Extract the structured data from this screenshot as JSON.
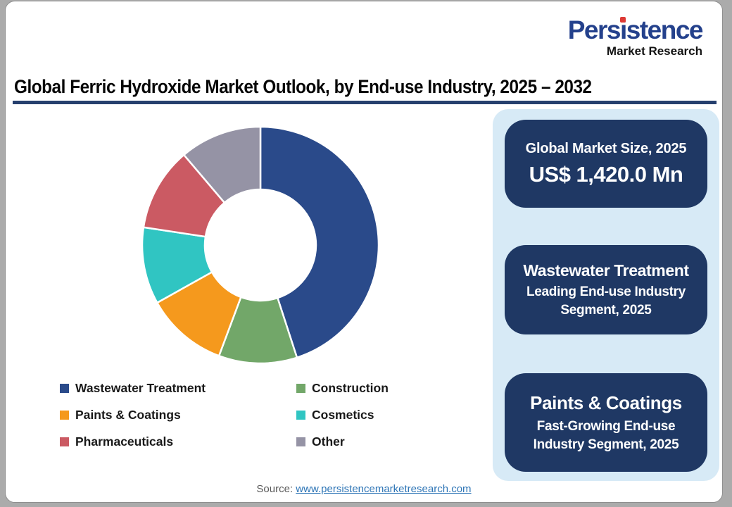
{
  "page": {
    "outer_background": "#ABABAB",
    "card_background": "#FFFFFF"
  },
  "logo": {
    "part1": "Pers",
    "i_char": "i",
    "part2": "stence",
    "subtitle": "Market Research",
    "blue": "#24418C",
    "dot_red": "#DD3A35"
  },
  "header": {
    "title": "Global Ferric Hydroxide Market Outlook, by End-use Industry, 2025 – 2032",
    "underline_color": "#26406E"
  },
  "chart_data": {
    "type": "pie",
    "subtype": "donut",
    "title": "Global Ferric Hydroxide Market Outlook, by End-use Industry, 2025 – 2032",
    "start_angle_deg": 0,
    "direction": "clockwise",
    "inner_radius_ratio": 0.47,
    "gap_stroke_color": "#FFFFFF",
    "segments": [
      {
        "label": "Wastewater Treatment",
        "value_pct_est": 45.0,
        "color": "#2A4A8A"
      },
      {
        "label": "Construction",
        "value_pct_est": 10.7,
        "color": "#72A769"
      },
      {
        "label": "Paints & Coatings",
        "value_pct_est": 11.2,
        "color": "#F5991D"
      },
      {
        "label": "Cosmetics",
        "value_pct_est": 10.5,
        "color": "#30C5C2"
      },
      {
        "label": "Pharmaceuticals",
        "value_pct_est": 11.4,
        "color": "#CB5A63"
      },
      {
        "label": "Other",
        "value_pct_est": 11.2,
        "color": "#9593A5"
      }
    ]
  },
  "legend": {
    "items": [
      {
        "label": "Wastewater Treatment",
        "color": "#2A4A8A"
      },
      {
        "label": "Construction",
        "color": "#72A769"
      },
      {
        "label": "Paints & Coatings",
        "color": "#F5991D"
      },
      {
        "label": "Cosmetics",
        "color": "#30C5C2"
      },
      {
        "label": "Pharmaceuticals",
        "color": "#CB5A63"
      },
      {
        "label": "Other",
        "color": "#9593A5"
      }
    ]
  },
  "panel": {
    "background": "#D7EAF6",
    "box_background": "#1F3864",
    "boxes": [
      {
        "title": "Global Market Size, 2025",
        "lines": [
          "US$ 1,420.0 Mn"
        ]
      },
      {
        "title": "Wastewater Treatment",
        "lines": [
          "Leading End-use Industry",
          "Segment, 2025"
        ]
      },
      {
        "title": "Paints & Coatings",
        "lines": [
          "Fast-Growing End-use",
          "Industry Segment, 2025"
        ]
      }
    ]
  },
  "footer": {
    "source_label": "Source:",
    "source_link_text": "www.persistencemarketresearch.com",
    "link_color": "#2E75B6"
  }
}
